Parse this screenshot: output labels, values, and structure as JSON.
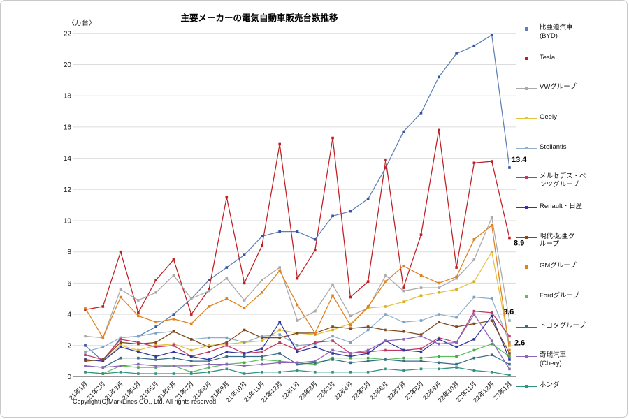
{
  "header": {
    "title": "主要メーカーの電気自動車販売台数推移",
    "unit_label": "〈万台〉"
  },
  "footer": {
    "copyright": "Copyright(C)MarkLines CO., Ltd. All rights reserved."
  },
  "chart_data": {
    "type": "line",
    "title": "主要メーカーの電気自動車販売台数推移",
    "ylabel": "〈万台〉",
    "xlabel": "",
    "ylim": [
      0,
      22
    ],
    "y_ticks": [
      0,
      2,
      4,
      6,
      8,
      10,
      12,
      14,
      16,
      18,
      20,
      22
    ],
    "grid": "horizontal",
    "legend_position": "right",
    "grid_color": "#dcdcdc",
    "axis_color": "#9a9a9a",
    "x": [
      "21年1月",
      "21年2月",
      "21年3月",
      "21年4月",
      "21年5月",
      "21年6月",
      "21年7月",
      "21年8月",
      "21年9月",
      "21年10月",
      "21年11月",
      "21年12月",
      "22年1月",
      "22年2月",
      "22年3月",
      "22年4月",
      "22年5月",
      "22年6月",
      "22年7月",
      "22年8月",
      "22年9月",
      "22年10月",
      "22年11月",
      "22年12月",
      "23年1月"
    ],
    "series": [
      {
        "name": "比亜迪汽車(BYD)",
        "legend_lines": [
          "比亜迪汽車",
          "(BYD)"
        ],
        "color": "#5f7fb2",
        "marker_color": "#35549b",
        "values": [
          2.0,
          1.0,
          2.5,
          2.6,
          3.2,
          4.0,
          5.0,
          6.2,
          7.0,
          7.8,
          9.0,
          9.3,
          9.3,
          8.8,
          10.3,
          10.6,
          11.4,
          13.4,
          15.7,
          16.9,
          19.2,
          20.7,
          21.2,
          21.9,
          13.4
        ],
        "end_label": {
          "text": "13.4",
          "dx": 3,
          "dy": -8
        }
      },
      {
        "name": "Tesla",
        "legend_lines": [
          "Tesla"
        ],
        "color": "#bf1e22",
        "marker_color": "#bf1e22",
        "values": [
          4.3,
          4.5,
          8.0,
          4.1,
          6.2,
          7.5,
          4.0,
          5.6,
          11.5,
          6.0,
          8.4,
          14.9,
          6.3,
          8.1,
          15.3,
          5.1,
          6.1,
          13.9,
          5.7,
          9.1,
          15.8,
          7.0,
          13.7,
          13.8,
          8.9
        ],
        "end_label": {
          "text": "8.9",
          "dx": 6,
          "dy": 11
        }
      },
      {
        "name": "VWグループ",
        "legend_lines": [
          "VWグループ"
        ],
        "color": "#a9a9a9",
        "marker_color": "#a9a9a9",
        "values": [
          2.6,
          2.5,
          5.6,
          4.9,
          5.4,
          6.5,
          5.0,
          5.5,
          6.3,
          4.9,
          6.2,
          7.0,
          3.6,
          4.2,
          5.9,
          3.9,
          4.4,
          6.5,
          5.5,
          5.7,
          5.7,
          6.3,
          7.5,
          10.2,
          3.6
        ],
        "end_label": {
          "text": "3.6",
          "dx": -9,
          "dy": -9
        }
      },
      {
        "name": "Geely",
        "legend_lines": [
          "Geely"
        ],
        "color": "#e3c240",
        "marker_color": "#d8ab25",
        "values": [
          1.1,
          1.0,
          2.0,
          1.7,
          2.0,
          2.1,
          1.7,
          2.0,
          2.1,
          2.2,
          2.3,
          3.0,
          2.8,
          2.7,
          3.0,
          3.4,
          4.4,
          4.5,
          4.8,
          5.2,
          5.4,
          5.6,
          6.1,
          8.0,
          2.0
        ]
      },
      {
        "name": "Stellantis",
        "legend_lines": [
          "Stellantis"
        ],
        "color": "#92b0cc",
        "marker_color": "#7da0c2",
        "values": [
          1.6,
          1.9,
          2.5,
          2.6,
          2.8,
          2.9,
          2.4,
          2.5,
          2.5,
          2.2,
          2.6,
          2.7,
          2.0,
          2.1,
          2.6,
          2.2,
          3.0,
          4.0,
          3.5,
          3.6,
          4.0,
          3.8,
          5.1,
          5.0,
          2.2
        ]
      },
      {
        "name": "メルセデス・ベンツグループ",
        "legend_lines": [
          "メルセデス・ベ",
          "ンツグループ"
        ],
        "color": "#bf3a63",
        "marker_color": "#bf3a63",
        "values": [
          1.4,
          1.1,
          2.4,
          2.2,
          1.9,
          2.0,
          1.3,
          1.6,
          2.0,
          1.5,
          1.6,
          2.2,
          1.7,
          2.2,
          2.3,
          1.5,
          1.6,
          1.7,
          1.7,
          1.8,
          2.5,
          2.2,
          4.2,
          4.1,
          2.6
        ],
        "end_label": {
          "text": "2.6",
          "dx": 7,
          "dy": 13
        }
      },
      {
        "name": "Renault・日産",
        "legend_lines": [
          "Renault・日産"
        ],
        "color": "#2f35a0",
        "marker_color": "#2f35a0",
        "values": [
          1.1,
          1.0,
          1.9,
          1.6,
          1.3,
          1.6,
          1.3,
          1.1,
          1.6,
          1.5,
          1.8,
          3.5,
          1.6,
          1.9,
          1.5,
          1.3,
          1.5,
          2.3,
          1.7,
          1.6,
          2.4,
          1.9,
          2.4,
          3.9,
          1.1
        ]
      },
      {
        "name": "現代-起亜グループ",
        "legend_lines": [
          "現代-起亜グ",
          "ループ"
        ],
        "color": "#7e4a1e",
        "marker_color": "#7e4a1e",
        "values": [
          1.0,
          1.1,
          2.2,
          2.1,
          2.2,
          2.9,
          2.4,
          1.9,
          2.2,
          3.0,
          2.5,
          2.5,
          2.8,
          2.8,
          3.2,
          3.1,
          3.2,
          3.0,
          2.9,
          2.7,
          3.5,
          3.2,
          3.4,
          3.6,
          1.5
        ]
      },
      {
        "name": "GMグループ",
        "legend_lines": [
          "GMグループ"
        ],
        "color": "#e0801f",
        "marker_color": "#e0801f",
        "values": [
          4.4,
          2.5,
          5.1,
          3.9,
          3.5,
          3.7,
          3.4,
          4.5,
          5.0,
          4.4,
          5.4,
          6.8,
          4.6,
          2.8,
          5.2,
          3.3,
          4.5,
          6.1,
          7.1,
          6.5,
          6.0,
          6.4,
          8.8,
          9.7,
          1.7
        ]
      },
      {
        "name": "Fordグループ",
        "legend_lines": [
          "Fordグループ"
        ],
        "color": "#5dbe5d",
        "marker_color": "#47a847",
        "values": [
          0.3,
          0.2,
          0.7,
          0.6,
          0.6,
          0.7,
          0.3,
          0.6,
          0.8,
          0.9,
          1.1,
          1.0,
          0.9,
          0.8,
          1.2,
          1.2,
          1.2,
          1.1,
          1.2,
          1.2,
          1.3,
          1.3,
          1.7,
          2.1,
          1.3
        ]
      },
      {
        "name": "トヨタグループ",
        "legend_lines": [
          "トヨタグループ"
        ],
        "color": "#376c86",
        "marker_color": "#376c86",
        "values": [
          0.7,
          0.6,
          1.2,
          1.2,
          1.1,
          1.2,
          1.0,
          1.0,
          1.3,
          1.3,
          1.3,
          1.5,
          0.8,
          0.9,
          1.1,
          0.9,
          1.0,
          1.1,
          1.0,
          1.0,
          0.9,
          0.8,
          1.2,
          1.4,
          0.8
        ]
      },
      {
        "name": "奇瑞汽車(Chery)",
        "legend_lines": [
          "奇瑞汽車",
          "(Chery)"
        ],
        "color": "#8d64b8",
        "marker_color": "#8d64b8",
        "values": [
          0.7,
          0.6,
          0.7,
          0.8,
          0.7,
          0.7,
          0.7,
          0.8,
          0.8,
          0.7,
          0.8,
          0.9,
          0.9,
          1.0,
          1.7,
          1.5,
          1.7,
          2.3,
          2.4,
          2.6,
          2.1,
          2.2,
          4.0,
          2.3,
          0.5
        ]
      },
      {
        "name": "ホンダ",
        "legend_lines": [
          "ホンダ"
        ],
        "color": "#2f9383",
        "marker_color": "#2f9383",
        "values": [
          0.3,
          0.2,
          0.3,
          0.2,
          0.2,
          0.2,
          0.2,
          0.3,
          0.5,
          0.2,
          0.3,
          0.3,
          0.4,
          0.3,
          0.3,
          0.3,
          0.3,
          0.5,
          0.4,
          0.5,
          0.5,
          0.6,
          0.4,
          0.3,
          0.1
        ]
      }
    ]
  }
}
